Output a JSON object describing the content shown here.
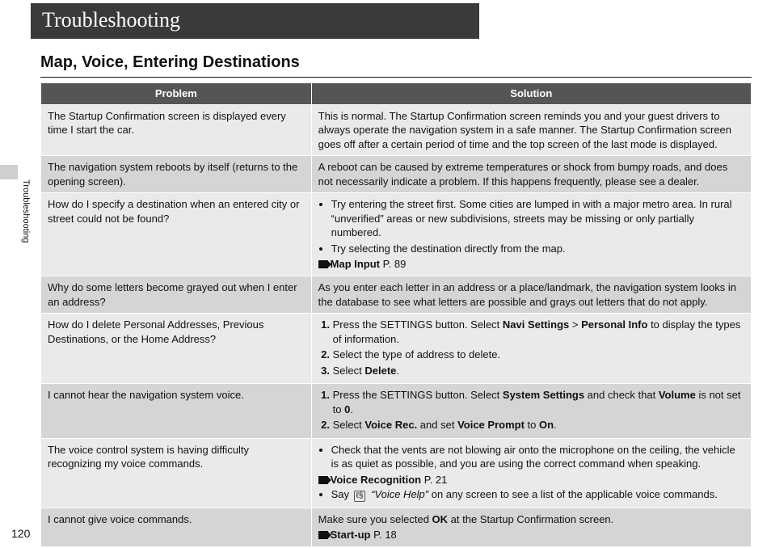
{
  "page": {
    "title": "Troubleshooting",
    "section_heading": "Map, Voice, Entering Destinations",
    "side_label": "Troubleshooting",
    "page_number": "120"
  },
  "table": {
    "headers": {
      "problem": "Problem",
      "solution": "Solution"
    },
    "rows": [
      {
        "problem": "The Startup Confirmation screen is displayed every time I start the car.",
        "solution_plain": "This is normal. The Startup Confirmation screen reminds you and your guest drivers to always operate the navigation system in a safe manner. The Startup Confirmation screen goes off after a certain period of time and the top screen of the last mode is displayed."
      },
      {
        "problem": "The navigation system reboots by itself (returns to the opening screen).",
        "solution_plain": "A reboot can be caused by extreme temperatures or shock from bumpy roads, and does not necessarily indicate a problem. If this happens frequently, please see a dealer."
      },
      {
        "problem": "How do I specify a destination when an entered city or street could not be found?",
        "solution_bullets": [
          "Try entering the street first. Some cities are lumped in with a major metro area. In rural “unverified” areas or new subdivisions, streets may be missing or only partially numbered.",
          "Try selecting the destination directly from the map."
        ],
        "ref": {
          "label": "Map Input",
          "page": "P. 89"
        }
      },
      {
        "problem": "Why do some letters become grayed out when I enter an address?",
        "solution_plain": "As you enter each letter in an address or a place/landmark, the navigation system looks in the database to see what letters are possible and grays out letters that do not apply."
      },
      {
        "problem": "How do I delete Personal Addresses, Previous Destinations, or the Home Address?",
        "solution_numbered_html": [
          "Press the SETTINGS button. Select <b>Navi Settings</b> > <b>Personal Info</b> to display the types of information.",
          "Select the type of address to delete.",
          "Select <b>Delete</b>."
        ]
      },
      {
        "problem": "I cannot hear the navigation system voice.",
        "solution_numbered_html": [
          "Press the SETTINGS button. Select <b>System Settings</b> and check that <b>Volume</b> is not set to <b>0</b>.",
          "Select <b>Voice Rec.</b> and set <b>Voice Prompt</b> to <b>On</b>."
        ]
      },
      {
        "problem": "The voice control system is having difficulty recognizing my voice commands.",
        "solution_bullets": [
          "Check that the vents are not blowing air onto the microphone on the ceiling, the vehicle is as quiet as possible, and you are using the correct command when speaking."
        ],
        "ref": {
          "label": "Voice Recognition",
          "page": "P. 21"
        },
        "extra_bullet_html": "Say <span class=\"talk-icon\">ℓ§</span> <i>“Voice Help”</i> on any screen to see a list of the applicable voice commands."
      },
      {
        "problem": "I cannot give voice commands.",
        "solution_html": "Make sure you selected <b>OK</b> at the Startup Confirmation screen.",
        "ref": {
          "label": "Start-up",
          "page": "P. 18"
        }
      }
    ]
  },
  "colors": {
    "title_bg": "#3a3a3a",
    "header_row_bg": "#555",
    "shade_a": "#eaeaea",
    "shade_b": "#d5d5d5",
    "side_tab": "#cfcfcf"
  }
}
